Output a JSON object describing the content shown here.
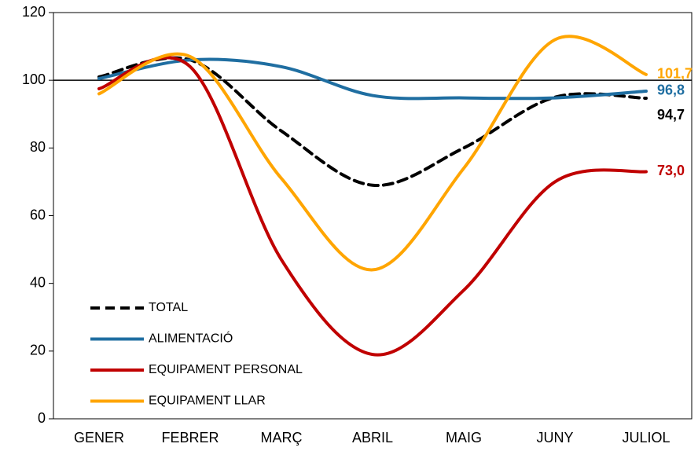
{
  "chart_data": {
    "type": "line",
    "categories": [
      "GENER",
      "FEBRER",
      "MARÇ",
      "ABRIL",
      "MAIG",
      "JUNY",
      "JULIOL"
    ],
    "series": [
      {
        "name": "TOTAL",
        "color": "#000000",
        "dash": true,
        "values": [
          101,
          106,
          85,
          69,
          80,
          95,
          94.7
        ],
        "value_labels": [
          null,
          null,
          null,
          null,
          null,
          null,
          "94,7"
        ]
      },
      {
        "name": "ALIMENTACIÓ",
        "color": "#1f6ea1",
        "values": [
          100.5,
          106,
          104,
          95.5,
          94.8,
          94.8,
          96.8
        ],
        "value_labels": [
          null,
          null,
          null,
          null,
          null,
          null,
          "96,8"
        ]
      },
      {
        "name": "EQUIPAMENT PERSONAL",
        "color": "#c00000",
        "values": [
          97.5,
          104,
          47,
          19,
          38,
          70,
          73.0
        ],
        "value_labels": [
          null,
          null,
          null,
          null,
          null,
          null,
          "73,0"
        ]
      },
      {
        "name": "EQUIPAMENT LLAR",
        "color": "#ffa500",
        "values": [
          96,
          107,
          71,
          44,
          74,
          112,
          101.7
        ],
        "value_labels": [
          null,
          null,
          null,
          null,
          null,
          null,
          "101,7"
        ]
      }
    ],
    "ylim": [
      0,
      120
    ],
    "yticks": [
      0,
      20,
      40,
      60,
      80,
      100,
      120
    ],
    "hline": 100,
    "legend": "lower left",
    "smooth": true
  }
}
